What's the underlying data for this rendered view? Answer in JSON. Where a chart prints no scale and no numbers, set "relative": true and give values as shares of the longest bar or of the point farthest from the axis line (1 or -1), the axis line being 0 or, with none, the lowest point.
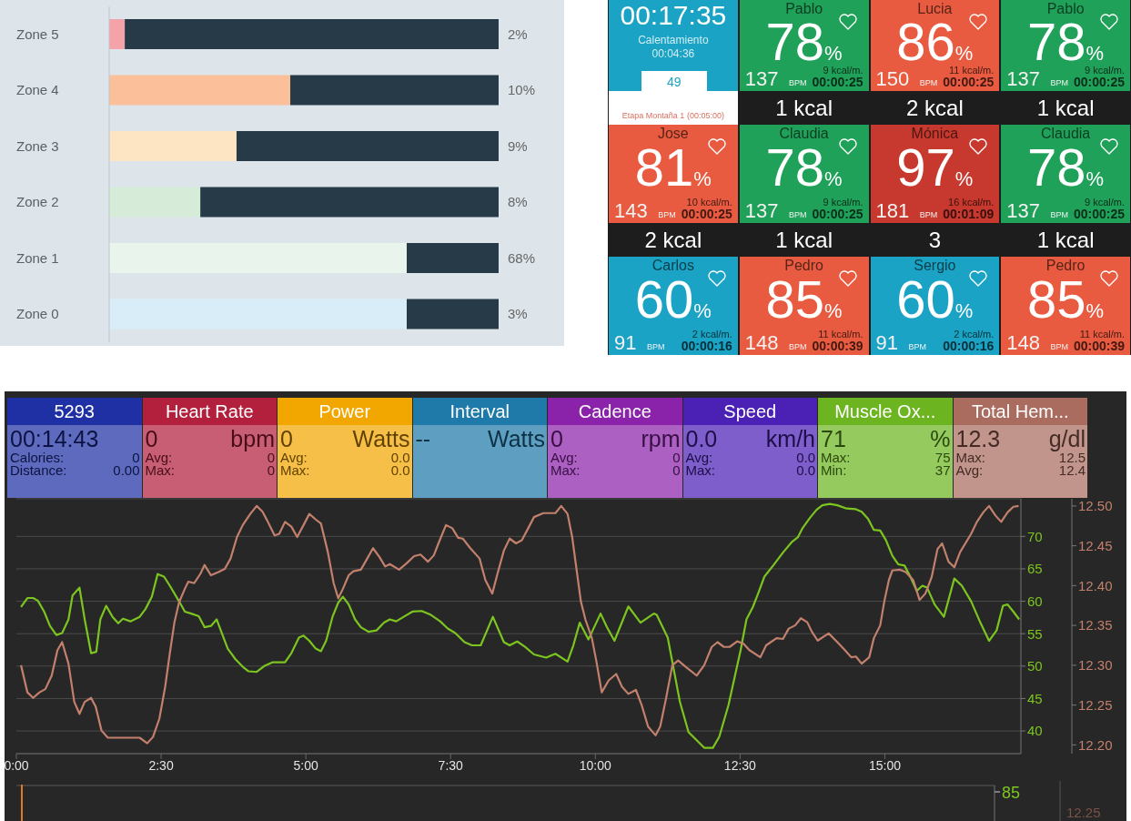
{
  "chart_data": [
    {
      "type": "bar",
      "orientation": "horizontal",
      "stacked": true,
      "relative": true,
      "categories": [
        "Zone 5",
        "Zone 4",
        "Zone 3",
        "Zone 2",
        "Zone 1",
        "Zone 0"
      ],
      "series": [
        {
          "colors": [
            "#f4a3a8",
            "#fbc09a",
            "#fde5c4",
            "#d6ecd8",
            "#e9f4ec",
            "#d9edf8"
          ],
          "values": [
            0.04,
            0.465,
            0.327,
            0.234,
            0.764,
            0.764
          ]
        },
        {
          "color": "#263a48",
          "values": [
            0.96,
            0.535,
            0.673,
            0.766,
            0.236,
            0.236
          ]
        }
      ],
      "annotations": [
        "2%",
        "10%",
        "9%",
        "8%",
        "68%",
        "3%"
      ]
    },
    {
      "type": "other",
      "categories": [
        null,
        "Pablo",
        "Lucia",
        "Pablo",
        "Jose",
        "Claudia",
        "Mónica",
        "Claudia",
        "Carlos",
        "Pedro",
        "Sergio",
        "Pedro"
      ],
      "colors": [
        "#1aa3c4",
        "#20a159",
        "#e85b40",
        "#20a159",
        "#e85b40",
        "#20a159",
        "#c7392e",
        "#20a159",
        "#1aa3c4",
        "#e85b40",
        "#1aa3c4",
        "#e85b40"
      ],
      "annotations": [
        "00:17:35\nCalentamiento\n00:04:36\n49\nEtapa Montaña 1 (00:05:00)",
        "78%\n137 BPM\n9 kcal/m.\n00:00:25",
        "86%\n150 BPM\n11 kcal/m.\n00:00:25",
        "78%\n137 BPM\n9 kcal/m.\n00:00:25",
        "81%\n143 BPM\n10 kcal/m.\n00:00:25",
        "78%\n137 BPM\n9 kcal/m.\n00:00:25",
        "97%\n181 BPM\n16 kcal/m.\n00:01:09",
        "78%\n137 BPM\n9 kcal/m.\n00:00:25",
        "60%\n91 BPM\n2 kcal/m.\n00:00:16",
        "85%\n148 BPM\n11 kcal/m.\n00:00:39",
        "60%\n91 BPM\n2 kcal/m.\n00:00:16",
        "85%\n148 BPM\n11 kcal/m.\n00:00:39",
        "1 kcal",
        "2 kcal",
        "1 kcal",
        "2 kcal",
        "1 kcal",
        "3",
        "1 kcal"
      ]
    },
    {
      "type": "other",
      "categories": [
        "5293",
        "Heart Rate",
        "Power",
        "Interval",
        "Cadence",
        "Speed",
        "Muscle Ox...",
        "Total Hem..."
      ],
      "colors": [
        "#1e30a4",
        "#b3203e",
        "#f2a600",
        "#1f7aa9",
        "#8b22aa",
        "#4b20b5",
        "#6cb520",
        "#a96c5e"
      ],
      "annotations": [
        "00:14:43\nCalories: 0\nDistance: 0.00",
        "0 bpm\nAvg: 0\nMax: 0",
        "0 Watts\nAvg: 0.0\nMax: 0.0",
        "-- Watts",
        "0 rpm\nAvg: 0\nMax: 0",
        "0.0 km/h\nAvg: 0.0\nMax: 0.0",
        "71 %\nMax: 75\nMin: 37",
        "12.3 g/dl\nMax: 12.5\nAvg: 12.4"
      ]
    },
    {
      "type": "line",
      "xlim": [
        0,
        17.35
      ],
      "xticks": [
        {
          "value": 0,
          "label": "0:00"
        },
        {
          "value": 2.5,
          "label": "2:30"
        },
        {
          "value": 5,
          "label": "5:00"
        },
        {
          "value": 7.5,
          "label": "7:30"
        },
        {
          "value": 10,
          "label": "10:00"
        },
        {
          "value": 12.5,
          "label": "12:30"
        },
        {
          "value": 15,
          "label": "15:00"
        }
      ],
      "ylim": [
        36.5,
        75.8
      ],
      "yticks": [
        40,
        45,
        50,
        55,
        60,
        65,
        70
      ],
      "y2lim": [
        12.189,
        12.509
      ],
      "y2ticks": [
        {
          "value": 12.2,
          "label": "12.20"
        },
        {
          "value": 12.25,
          "label": "12.25"
        },
        {
          "value": 12.3,
          "label": "12.30"
        },
        {
          "value": 12.35,
          "label": "12.35"
        },
        {
          "value": 12.4,
          "label": "12.40"
        },
        {
          "value": 12.45,
          "label": "12.45"
        },
        {
          "value": 12.5,
          "label": "12.50"
        }
      ],
      "grid": "y",
      "series": [
        {
          "color": "#7cc520",
          "x": [
            0.08,
            0.19,
            0.29,
            0.37,
            0.48,
            0.58,
            0.69,
            0.79,
            0.9,
            0.97,
            1.09,
            1.18,
            1.29,
            1.38,
            1.45,
            1.55,
            1.66,
            1.76,
            1.84,
            1.97,
            2.13,
            2.23,
            2.34,
            2.44,
            2.55,
            2.65,
            2.81,
            2.91,
            3.02,
            3.15,
            3.25,
            3.36,
            3.46,
            3.54,
            3.65,
            3.78,
            3.91,
            4.01,
            4.15,
            4.28,
            4.43,
            4.64,
            4.75,
            4.88,
            4.96,
            5.06,
            5.17,
            5.26,
            5.35,
            5.46,
            5.56,
            5.64,
            5.74,
            5.85,
            5.95,
            6.08,
            6.22,
            6.35,
            6.45,
            6.56,
            6.69,
            6.84,
            7.0,
            7.16,
            7.32,
            7.45,
            7.58,
            7.74,
            7.87,
            8.02,
            8.23,
            8.42,
            8.52,
            8.65,
            8.78,
            8.94,
            9.15,
            9.31,
            9.52,
            9.62,
            9.73,
            9.88,
            10.09,
            10.2,
            10.33,
            10.57,
            10.78,
            11.01,
            11.06,
            11.25,
            11.35,
            11.46,
            11.61,
            11.77,
            11.88,
            12.03,
            12.14,
            12.3,
            12.51,
            12.61,
            12.72,
            12.82,
            12.92,
            13.08,
            13.24,
            13.4,
            13.5,
            13.58,
            13.71,
            13.82,
            13.92,
            14.05,
            14.18,
            14.34,
            14.5,
            14.6,
            14.71,
            14.81,
            14.92,
            15.02,
            15.13,
            15.23,
            15.34,
            15.44,
            15.55,
            15.65,
            15.73,
            15.86,
            16.02,
            16.2,
            16.33,
            16.49,
            16.65,
            16.8,
            16.93,
            17.04,
            17.12,
            17.22,
            17.32
          ],
          "values": [
            59.1,
            60.5,
            60.5,
            60.1,
            58.4,
            56.2,
            54.8,
            55.1,
            57.2,
            60.9,
            62.1,
            57.2,
            52.0,
            52.2,
            57.2,
            59.3,
            57.6,
            56.6,
            57.3,
            56.9,
            57.6,
            58.8,
            60.7,
            64.2,
            63.8,
            62.4,
            60.0,
            58.4,
            58.1,
            57.7,
            56.0,
            56.2,
            57.2,
            55.3,
            52.7,
            51.1,
            49.9,
            49.2,
            49.1,
            50.0,
            50.6,
            50.6,
            52.0,
            54.4,
            54.7,
            53.9,
            52.7,
            52.3,
            53.9,
            57.6,
            59.8,
            60.7,
            59.5,
            57.2,
            56.0,
            55.3,
            55.5,
            56.7,
            57.2,
            56.9,
            57.6,
            58.4,
            58.5,
            57.9,
            56.9,
            55.8,
            55.1,
            53.7,
            53.2,
            53.2,
            57.6,
            53.7,
            53.2,
            53.8,
            53.0,
            51.8,
            51.3,
            51.9,
            50.7,
            53.2,
            56.7,
            54.1,
            58.1,
            56.0,
            53.9,
            59.2,
            56.7,
            58.1,
            57.9,
            54.4,
            49.7,
            44.5,
            39.8,
            38.4,
            37.4,
            37.4,
            39.1,
            44.0,
            52.5,
            57.2,
            59.1,
            61.4,
            63.8,
            65.6,
            67.5,
            69.2,
            69.9,
            71.3,
            72.9,
            74.1,
            74.8,
            75.0,
            74.8,
            74.3,
            74.2,
            73.8,
            72.7,
            71.0,
            70.9,
            69.4,
            67.0,
            65.7,
            65.5,
            63.8,
            61.6,
            62.4,
            62.1,
            59.5,
            57.6,
            63.5,
            62.4,
            60.0,
            56.7,
            53.9,
            55.5,
            59.3,
            59.5,
            58.4,
            57.2
          ]
        },
        {
          "color": "#c3806d",
          "axis": "y2",
          "x": [
            0.08,
            0.19,
            0.29,
            0.4,
            0.5,
            0.61,
            0.71,
            0.79,
            0.9,
            1.0,
            1.09,
            1.18,
            1.29,
            1.37,
            1.47,
            1.58,
            1.71,
            1.92,
            2.13,
            2.26,
            2.36,
            2.47,
            2.57,
            2.65,
            2.73,
            2.81,
            2.91,
            2.97,
            3.07,
            3.18,
            3.25,
            3.36,
            3.49,
            3.6,
            3.7,
            3.81,
            3.91,
            4.04,
            4.15,
            4.25,
            4.33,
            4.46,
            4.54,
            4.64,
            4.75,
            4.85,
            4.96,
            5.06,
            5.17,
            5.26,
            5.38,
            5.48,
            5.56,
            5.64,
            5.74,
            5.82,
            5.95,
            6.06,
            6.16,
            6.27,
            6.37,
            6.45,
            6.61,
            6.74,
            6.87,
            6.98,
            7.11,
            7.21,
            7.29,
            7.42,
            7.53,
            7.63,
            7.71,
            7.84,
            8.0,
            8.1,
            8.22,
            8.31,
            8.42,
            8.52,
            8.63,
            8.73,
            8.84,
            8.94,
            9.1,
            9.31,
            9.41,
            9.52,
            9.6,
            9.67,
            9.75,
            9.83,
            9.94,
            10.02,
            10.11,
            10.23,
            10.36,
            10.46,
            10.57,
            10.7,
            10.8,
            10.91,
            11.04,
            11.12,
            11.22,
            11.33,
            11.43,
            11.56,
            11.75,
            11.88,
            12.01,
            12.11,
            12.22,
            12.32,
            12.45,
            12.56,
            12.66,
            12.85,
            12.95,
            13.03,
            13.13,
            13.24,
            13.34,
            13.45,
            13.55,
            13.66,
            13.74,
            13.84,
            14.03,
            14.18,
            14.31,
            14.42,
            14.5,
            14.6,
            14.73,
            14.81,
            14.92,
            14.99,
            15.07,
            15.13,
            15.26,
            15.36,
            15.49,
            15.6,
            15.7,
            15.81,
            15.91,
            15.99,
            16.1,
            16.2,
            16.3,
            16.49,
            16.59,
            16.7,
            16.8,
            16.91,
            17.01,
            17.12,
            17.22,
            17.31
          ],
          "values": [
            12.3,
            12.266,
            12.259,
            12.266,
            12.27,
            12.287,
            12.319,
            12.329,
            12.302,
            12.254,
            12.239,
            12.254,
            12.259,
            12.248,
            12.218,
            12.209,
            12.209,
            12.209,
            12.209,
            12.202,
            12.21,
            12.233,
            12.273,
            12.315,
            12.354,
            12.379,
            12.396,
            12.405,
            12.403,
            12.415,
            12.426,
            12.413,
            12.417,
            12.421,
            12.434,
            12.461,
            12.476,
            12.49,
            12.5,
            12.493,
            12.482,
            12.463,
            12.465,
            12.48,
            12.474,
            12.461,
            12.476,
            12.49,
            12.483,
            12.478,
            12.442,
            12.403,
            12.384,
            12.396,
            12.413,
            12.418,
            12.42,
            12.434,
            12.447,
            12.436,
            12.424,
            12.427,
            12.42,
            12.428,
            12.437,
            12.439,
            12.43,
            12.438,
            12.453,
            12.476,
            12.472,
            12.46,
            12.459,
            12.447,
            12.434,
            12.407,
            12.39,
            12.415,
            12.444,
            12.459,
            12.453,
            12.457,
            12.472,
            12.486,
            12.491,
            12.491,
            12.5,
            12.49,
            12.461,
            12.423,
            12.38,
            12.357,
            12.334,
            12.304,
            12.266,
            12.281,
            12.289,
            12.273,
            12.264,
            12.269,
            12.25,
            12.223,
            12.212,
            12.223,
            12.258,
            12.3,
            12.306,
            12.298,
            12.287,
            12.3,
            12.323,
            12.329,
            12.323,
            12.323,
            12.33,
            12.327,
            12.319,
            12.31,
            12.325,
            12.329,
            12.334,
            12.333,
            12.346,
            12.35,
            12.359,
            12.354,
            12.342,
            12.331,
            12.34,
            12.329,
            12.319,
            12.31,
            12.311,
            12.302,
            12.31,
            12.334,
            12.35,
            12.38,
            12.407,
            12.419,
            12.42,
            12.417,
            12.407,
            12.382,
            12.39,
            12.411,
            12.446,
            12.453,
            12.43,
            12.423,
            12.442,
            12.465,
            12.48,
            12.492,
            12.5,
            12.488,
            12.48,
            12.492,
            12.499,
            12.5
          ]
        }
      ]
    },
    {
      "type": "other",
      "annotations": [
        "85",
        "12.25"
      ],
      "colors": [
        "#7cc520",
        "#7a5248"
      ]
    }
  ]
}
